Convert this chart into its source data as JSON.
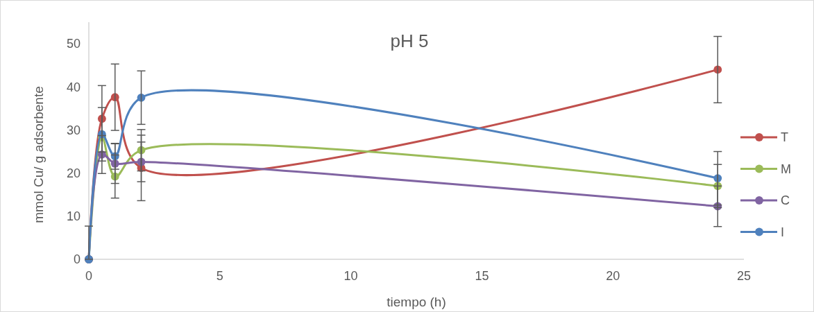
{
  "chart_data": {
    "type": "line",
    "title": "pH 5",
    "xlabel": "tiempo (h)",
    "ylabel": "mmol Cu/ g adsorbente",
    "x": [
      0,
      0.5,
      1,
      2,
      24
    ],
    "series": [
      {
        "name": "T",
        "color": "#c0504d",
        "values": [
          0,
          32.6,
          37.6,
          21.2,
          44.0
        ],
        "errors": [
          [
            0,
            7.7
          ],
          7.7,
          7.7,
          7.6,
          7.7
        ]
      },
      {
        "name": "M",
        "color": "#9bbb59",
        "values": [
          0,
          28.3,
          19.2,
          25.3,
          17.0
        ],
        "errors": [
          null,
          null,
          5.0,
          4.8,
          5.0
        ]
      },
      {
        "name": "C",
        "color": "#8064a2",
        "values": [
          0,
          24.3,
          22.2,
          22.6,
          12.3
        ],
        "errors": [
          null,
          4.4,
          4.6,
          4.6,
          4.7
        ]
      },
      {
        "name": "I",
        "color": "#4f81bd",
        "values": [
          0,
          29.0,
          23.9,
          37.5,
          18.8
        ],
        "errors": [
          null,
          6.2,
          3.0,
          6.2,
          6.2
        ]
      }
    ],
    "xlim": [
      0,
      25
    ],
    "xticks": [
      0,
      5,
      10,
      15,
      20,
      25
    ],
    "ylim": [
      0,
      55
    ],
    "yticks": [
      0,
      10,
      20,
      30,
      40,
      50
    ],
    "grid": false,
    "legend": "right",
    "marker": "circle",
    "line_style": "solid"
  }
}
